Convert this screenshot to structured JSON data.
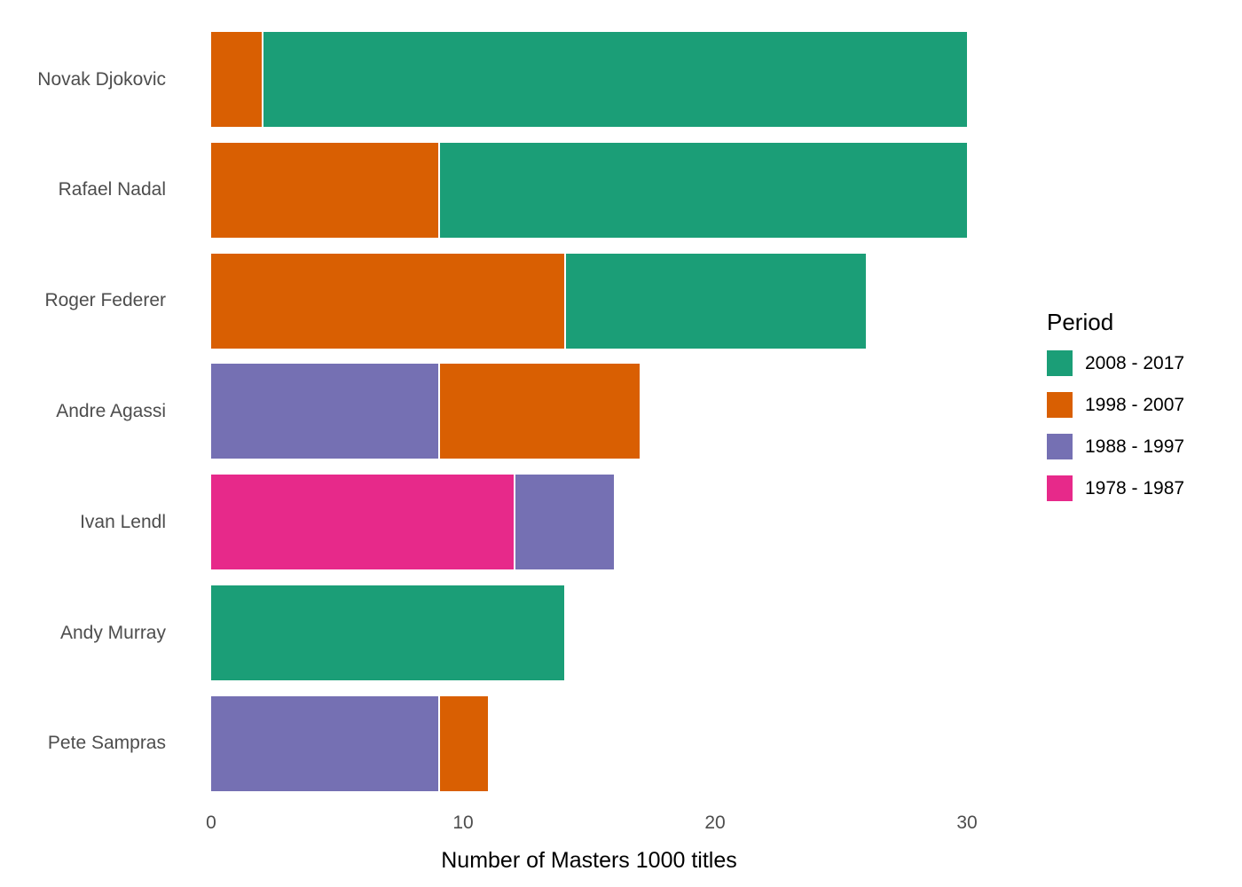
{
  "chart_data": {
    "type": "bar",
    "orientation": "horizontal",
    "stacked": true,
    "title": "",
    "xlabel": "Number of Masters 1000 titles",
    "ylabel": "",
    "xticks": [
      0,
      10,
      20,
      30
    ],
    "xlim": [
      0,
      30
    ],
    "grid": false,
    "legend_position": "right",
    "legend_title": "Period",
    "categories": [
      "Novak Djokovic",
      "Rafael Nadal",
      "Roger Federer",
      "Andre Agassi",
      "Ivan Lendl",
      "Andy Murray",
      "Pete Sampras"
    ],
    "series": [
      {
        "name": "1978 - 1987",
        "color": "#E7298A",
        "values": [
          0,
          0,
          0,
          0,
          12,
          0,
          0
        ]
      },
      {
        "name": "1988 - 1997",
        "color": "#7570B3",
        "values": [
          0,
          0,
          0,
          9,
          4,
          0,
          9
        ]
      },
      {
        "name": "1998 - 2007",
        "color": "#D95F02",
        "values": [
          2,
          9,
          14,
          8,
          0,
          0,
          2
        ]
      },
      {
        "name": "2008 - 2017",
        "color": "#1B9E77",
        "values": [
          28,
          21,
          12,
          0,
          0,
          14,
          0
        ]
      }
    ],
    "totals": [
      30,
      30,
      26,
      17,
      16,
      14,
      11
    ]
  },
  "legend": {
    "title": "Period",
    "items": [
      {
        "label": "2008 - 2017",
        "color": "#1B9E77"
      },
      {
        "label": "1998 - 2007",
        "color": "#D95F02"
      },
      {
        "label": "1988 - 1997",
        "color": "#7570B3"
      },
      {
        "label": "1978 - 1987",
        "color": "#E7298A"
      }
    ]
  },
  "axis": {
    "x_title": "Number of Masters 1000 titles",
    "x_tick_labels": [
      "0",
      "10",
      "20",
      "30"
    ]
  }
}
